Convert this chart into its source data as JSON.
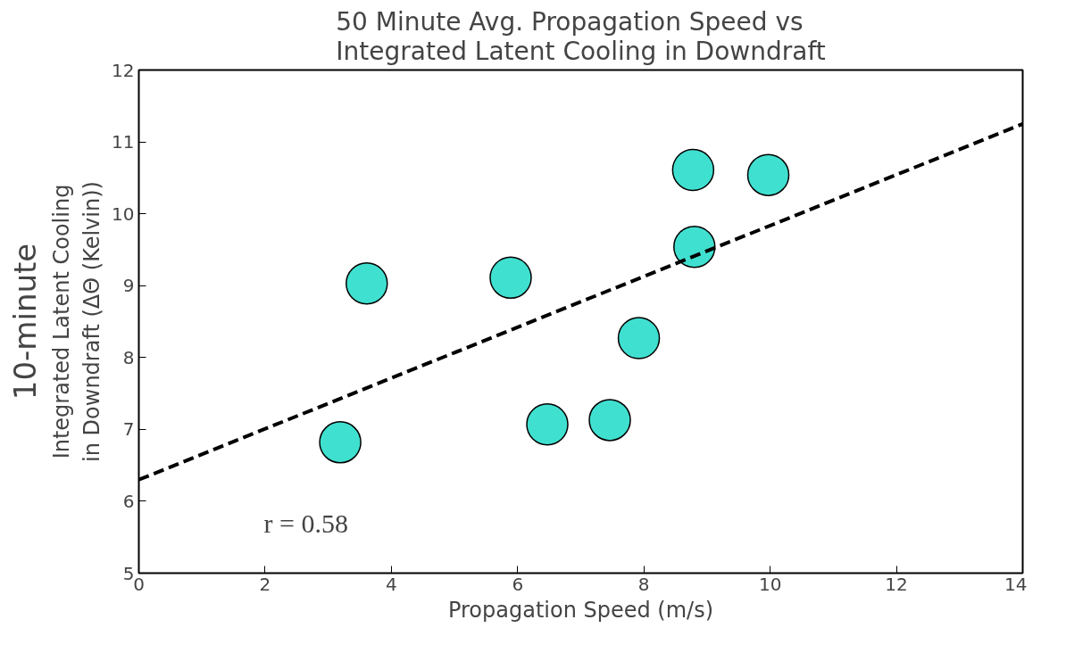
{
  "chart_data": {
    "type": "scatter",
    "title": "50 Minute Avg. Propagation Speed vs\nIntegrated Latent Cooling in Downdraft",
    "xlabel": "Propagation Speed (m/s)",
    "ylabel": "Integrated Latent Cooling\nin Downdraft (ΔΘ (Kelvin))",
    "annotations": [
      "10-minute",
      "r = 0.58"
    ],
    "xlim": [
      0,
      14
    ],
    "ylim": [
      5,
      12
    ],
    "xticks": [
      0,
      2,
      4,
      6,
      8,
      10,
      12,
      14
    ],
    "yticks": [
      5,
      6,
      7,
      8,
      9,
      10,
      11,
      12
    ],
    "grid": false,
    "marker": "circle",
    "series": [
      {
        "color": "#40e0d0",
        "x": [
          3.19,
          3.61,
          5.89,
          6.47,
          7.46,
          7.92,
          8.78,
          8.8,
          9.97
        ],
        "values": [
          6.82,
          9.03,
          9.11,
          7.07,
          7.13,
          8.27,
          10.61,
          9.54,
          10.54
        ]
      },
      {
        "type": "line",
        "color": "#000000",
        "line_style": "dashed",
        "marker": "none",
        "x": [
          0,
          14
        ],
        "values": [
          6.3,
          11.25
        ]
      }
    ]
  }
}
